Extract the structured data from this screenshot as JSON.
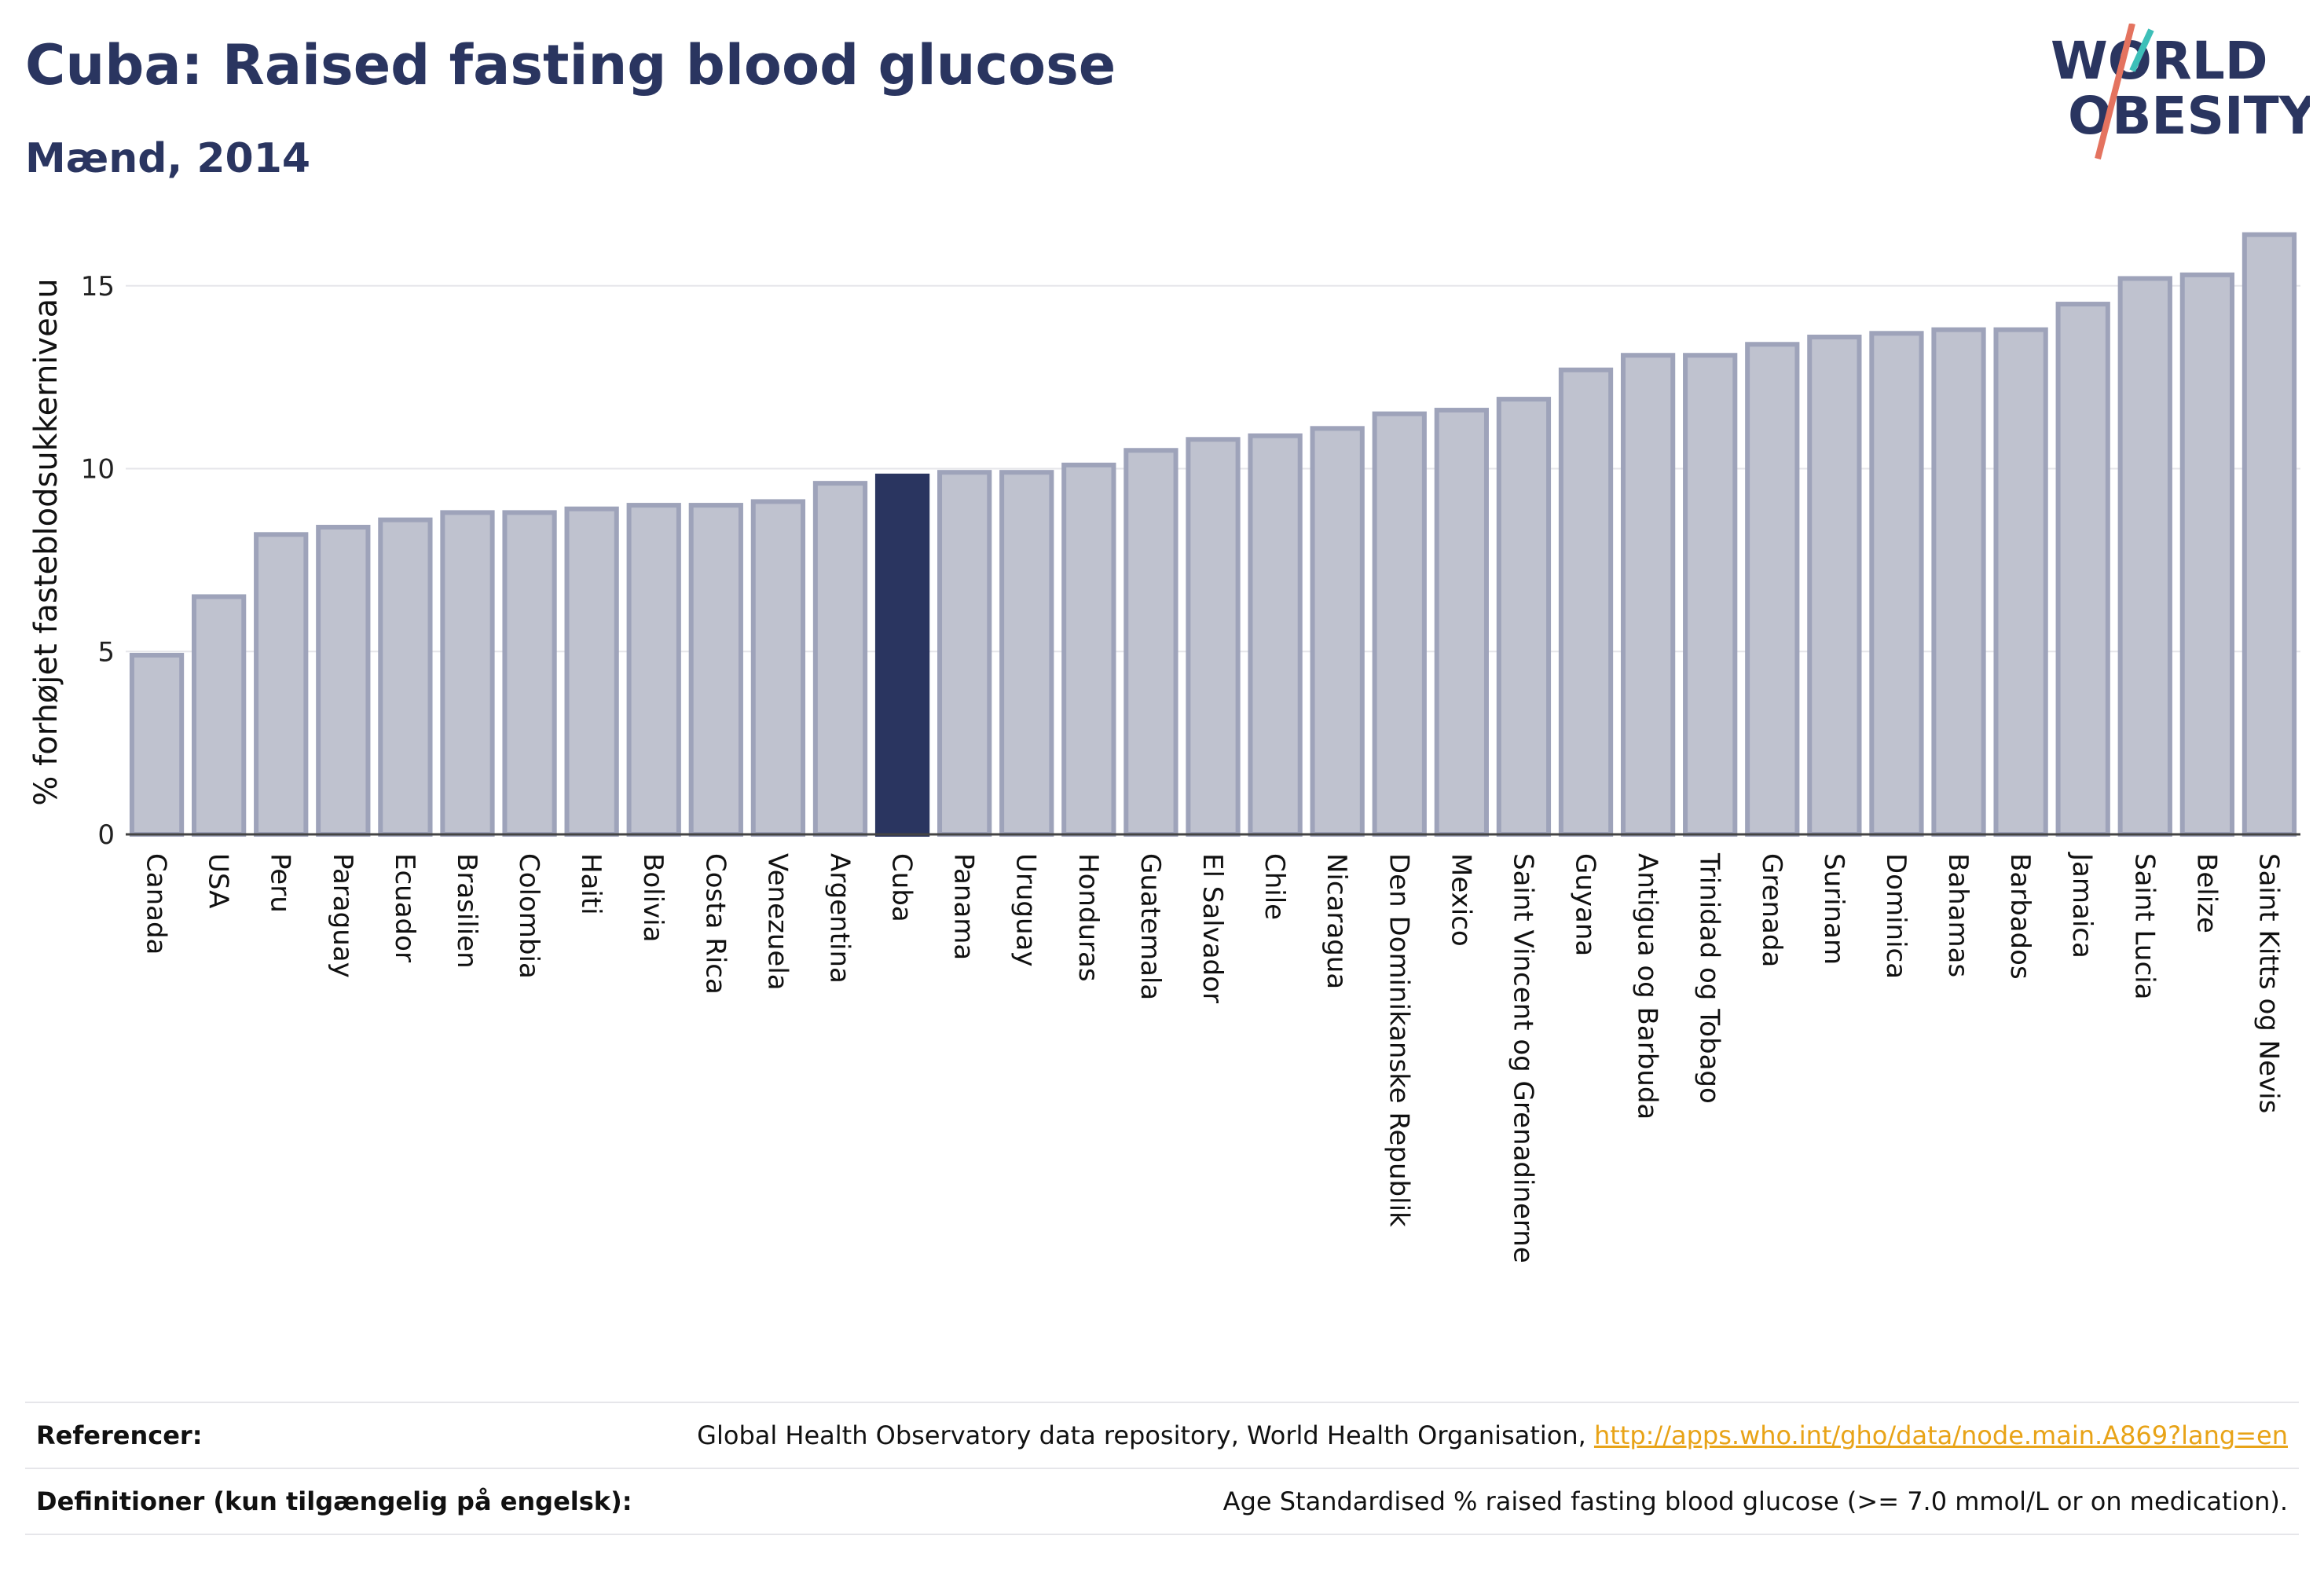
{
  "header": {
    "title": "Cuba: Raised fasting blood glucose",
    "subtitle": "Mænd, 2014",
    "logo_line1": "WORLD",
    "logo_line2": "OBESITY"
  },
  "chart_data": {
    "type": "bar",
    "title": "Cuba: Raised fasting blood glucose",
    "subtitle": "Mænd, 2014",
    "ylabel": "% forhøjet fasteblodsukkerniveau",
    "xlabel": "",
    "ylim": [
      0,
      16.8
    ],
    "yticks": [
      0,
      5,
      10,
      15
    ],
    "grid": true,
    "highlight": "Cuba",
    "categories": [
      "Canada",
      "USA",
      "Peru",
      "Paraguay",
      "Ecuador",
      "Brasilien",
      "Colombia",
      "Haiti",
      "Bolivia",
      "Costa Rica",
      "Venezuela",
      "Argentina",
      "Cuba",
      "Panama",
      "Uruguay",
      "Honduras",
      "Guatemala",
      "El Salvador",
      "Chile",
      "Nicaragua",
      "Den Dominikanske Republik",
      "Mexico",
      "Saint Vincent og Grenadinerne",
      "Guyana",
      "Antigua og Barbuda",
      "Trinidad og Tobago",
      "Grenada",
      "Surinam",
      "Dominica",
      "Bahamas",
      "Barbados",
      "Jamaica",
      "Saint Lucia",
      "Belize",
      "Saint Kitts og Nevis"
    ],
    "values": [
      4.9,
      6.5,
      8.2,
      8.4,
      8.6,
      8.8,
      8.8,
      8.9,
      9.0,
      9.0,
      9.1,
      9.6,
      9.8,
      9.9,
      9.9,
      10.1,
      10.5,
      10.8,
      10.9,
      11.1,
      11.5,
      11.6,
      11.9,
      12.7,
      13.1,
      13.1,
      13.4,
      13.6,
      13.7,
      13.8,
      13.8,
      14.5,
      15.2,
      15.3,
      16.4
    ],
    "colors": {
      "bar": "#bfc2cf",
      "bar_edge": "#9ea3ba",
      "highlight": "#2a3560",
      "grid": "#e6e6ea"
    }
  },
  "footer": {
    "references_label": "Referencer:",
    "references_text": "Global Health Observatory data repository, World Health Organisation,",
    "references_link": "http://apps.who.int/gho/data/node.main.A869?lang=en",
    "definitions_label": "Definitioner (kun tilgængelig på engelsk):",
    "definitions_text": "Age Standardised % raised fasting blood glucose (>= 7.0 mmol/L or on medication)."
  }
}
